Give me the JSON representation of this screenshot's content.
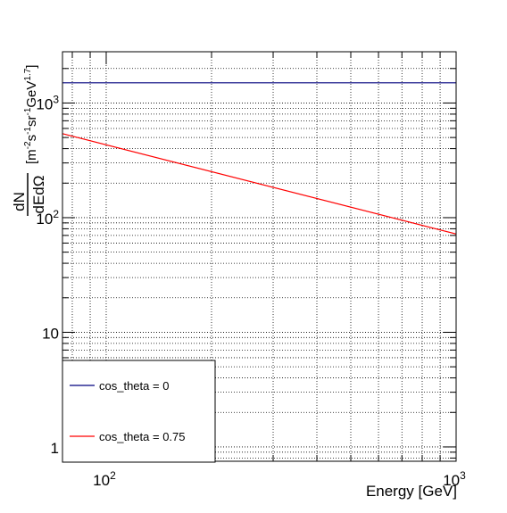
{
  "chart_data": {
    "type": "line",
    "scale": {
      "x": "log",
      "y": "log"
    },
    "grid": true,
    "xlabel": "Energy [GeV]",
    "ylabel": {
      "fraction_numerator": "dN",
      "fraction_denominator": "dEdΩ",
      "units": "[m-2s-1sr-1GeV1.7]"
    },
    "xlim": [
      75,
      1000
    ],
    "ylim": [
      0.75,
      2800
    ],
    "x_ticks": [
      {
        "value": 100,
        "label": "10",
        "exp": "2"
      },
      {
        "value": 1000,
        "label": "10",
        "exp": "3"
      }
    ],
    "y_ticks": [
      {
        "value": 1,
        "label": "1",
        "exp": ""
      },
      {
        "value": 10,
        "label": "10",
        "exp": ""
      },
      {
        "value": 100,
        "label": "10",
        "exp": "2"
      },
      {
        "value": 1000,
        "label": "10",
        "exp": "3"
      }
    ],
    "legend_position": "bottom-left",
    "series": [
      {
        "name": "cos_theta = 0",
        "color": "#00007f",
        "x": [
          75,
          1000
        ],
        "y": [
          1500,
          1500
        ]
      },
      {
        "name": "cos_theta = 0.75",
        "color": "#ff0000",
        "x": [
          75,
          1000
        ],
        "y": [
          540,
          72
        ]
      }
    ]
  }
}
